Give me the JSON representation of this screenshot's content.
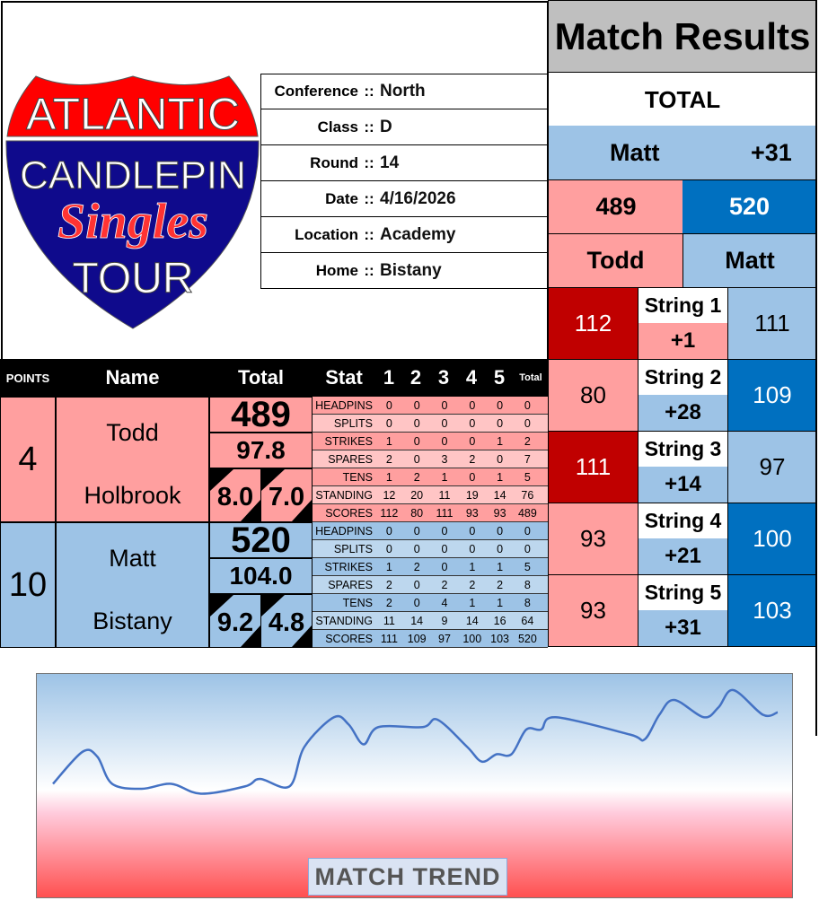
{
  "logo": {
    "line1": "ATLANTIC",
    "line2": "CANDLEPIN",
    "line3": "Singles",
    "line4": "TOUR"
  },
  "info": [
    {
      "label": "Conference",
      "sep": "::",
      "value": "North"
    },
    {
      "label": "Class",
      "sep": "::",
      "value": "D"
    },
    {
      "label": "Round",
      "sep": "::",
      "value": "14"
    },
    {
      "label": "Date",
      "sep": "::",
      "value": "4/16/2026"
    },
    {
      "label": "Location",
      "sep": "::",
      "value": "Academy"
    },
    {
      "label": "Home",
      "sep": "::",
      "value": "Bistany"
    }
  ],
  "header": {
    "points": "POINTS",
    "name": "Name",
    "total": "Total",
    "stat": "Stat",
    "s1": "1",
    "s2": "2",
    "s3": "3",
    "s4": "4",
    "s5": "5",
    "stotal": "Total"
  },
  "players": [
    {
      "points": "4",
      "first": "Todd",
      "last": "Holbrook",
      "total": "489",
      "avg": "97.8",
      "a": "8.0",
      "b": "7.0",
      "stats": [
        [
          "HEADPINS",
          "0",
          "0",
          "0",
          "0",
          "0",
          "0"
        ],
        [
          "SPLITS",
          "0",
          "0",
          "0",
          "0",
          "0",
          "0"
        ],
        [
          "STRIKES",
          "1",
          "0",
          "0",
          "0",
          "1",
          "2"
        ],
        [
          "SPARES",
          "2",
          "0",
          "3",
          "2",
          "0",
          "7"
        ],
        [
          "TENS",
          "1",
          "2",
          "1",
          "0",
          "1",
          "5"
        ],
        [
          "STANDING",
          "12",
          "20",
          "11",
          "19",
          "14",
          "76"
        ],
        [
          "SCORES",
          "112",
          "80",
          "111",
          "93",
          "93",
          "489"
        ]
      ]
    },
    {
      "points": "10",
      "first": "Matt",
      "last": "Bistany",
      "total": "520",
      "avg": "104.0",
      "a": "9.2",
      "b": "4.8",
      "stats": [
        [
          "HEADPINS",
          "0",
          "0",
          "0",
          "0",
          "0",
          "0"
        ],
        [
          "SPLITS",
          "0",
          "0",
          "0",
          "0",
          "0",
          "0"
        ],
        [
          "STRIKES",
          "1",
          "2",
          "0",
          "1",
          "1",
          "5"
        ],
        [
          "SPARES",
          "2",
          "0",
          "2",
          "2",
          "2",
          "8"
        ],
        [
          "TENS",
          "2",
          "0",
          "4",
          "1",
          "1",
          "8"
        ],
        [
          "STANDING",
          "11",
          "14",
          "9",
          "14",
          "16",
          "64"
        ],
        [
          "SCORES",
          "111",
          "109",
          "97",
          "100",
          "103",
          "520"
        ]
      ]
    }
  ],
  "results": {
    "title": "Match Results",
    "total_label": "TOTAL",
    "leader": "Matt",
    "margin": "+31",
    "left_total": "489",
    "right_total": "520",
    "left_name": "Todd",
    "right_name": "Matt",
    "strings": [
      {
        "label": "String 1",
        "left": "112",
        "right": "111",
        "diff": "+1",
        "winner": "left",
        "lead": "left"
      },
      {
        "label": "String 2",
        "left": "80",
        "right": "109",
        "diff": "+28",
        "winner": "right",
        "lead": "right"
      },
      {
        "label": "String 3",
        "left": "111",
        "right": "97",
        "diff": "+14",
        "winner": "left",
        "lead": "right"
      },
      {
        "label": "String 4",
        "left": "93",
        "right": "100",
        "diff": "+21",
        "winner": "right",
        "lead": "right"
      },
      {
        "label": "String 5",
        "left": "93",
        "right": "103",
        "diff": "+31",
        "winner": "right",
        "lead": "right"
      }
    ]
  },
  "colors": {
    "pink": "#ff9f9f",
    "pink_light": "#ffc5c5",
    "blue": "#9dc3e6",
    "blue_light": "#bdd7ee",
    "dark_red": "#c00000",
    "dark_blue": "#0070c0",
    "grey": "#bfbfbf",
    "line": "#4472c4"
  },
  "chart_data": {
    "type": "line",
    "title": "MATCH TREND",
    "smooth": true,
    "grid": false,
    "axes": false,
    "x": [
      1,
      3,
      4,
      5,
      7,
      9,
      11,
      14,
      15,
      17,
      18,
      20,
      21,
      22,
      23,
      26,
      27,
      29,
      30,
      31,
      32,
      33,
      34,
      35,
      40,
      41,
      42,
      43,
      45,
      46,
      47,
      49,
      50
    ],
    "values": [
      2,
      15,
      13,
      2,
      0,
      2,
      -2,
      1,
      4,
      1,
      17,
      29,
      26,
      18,
      25,
      25,
      28,
      17,
      11,
      14,
      14,
      24,
      24,
      29,
      22,
      20,
      30,
      36,
      29,
      33,
      40,
      30,
      31
    ],
    "ylim": [
      -45,
      45
    ]
  }
}
